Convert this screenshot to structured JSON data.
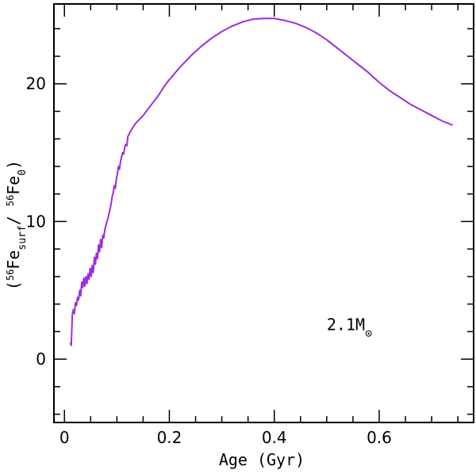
{
  "chart_data": {
    "type": "line",
    "title": "",
    "xlabel": "Age (Gyr)",
    "ylabel": {
      "open": "(",
      "num_sup": "56",
      "num_base": "Fe",
      "num_sub": "surf",
      "slash": "/ ",
      "den_sup": "56",
      "den_base": "Fe",
      "den_sub": "0",
      "close": ")"
    },
    "xlim": [
      -0.02,
      0.78
    ],
    "ylim": [
      -4.6,
      25.8
    ],
    "xticks": [
      0,
      0.2,
      0.4,
      0.6
    ],
    "xtick_labels": [
      "0",
      "0.2",
      "0.4",
      "0.6"
    ],
    "yticks": [
      0,
      10,
      20
    ],
    "ytick_labels": [
      "0",
      "10",
      "20"
    ],
    "x_minor_step": 0.05,
    "y_minor_step": 2,
    "annotation": {
      "text": "2.1M",
      "symbol": "⊙",
      "x": 0.5,
      "y": 2.1
    },
    "series": [
      {
        "name": "2.1 Msun",
        "color": "#9a2ee0",
        "x": [
          0.011,
          0.013,
          0.015,
          0.017,
          0.019,
          0.021,
          0.023,
          0.025,
          0.027,
          0.029,
          0.031,
          0.033,
          0.035,
          0.037,
          0.039,
          0.041,
          0.043,
          0.045,
          0.047,
          0.049,
          0.051,
          0.053,
          0.055,
          0.057,
          0.059,
          0.061,
          0.063,
          0.065,
          0.067,
          0.069,
          0.071,
          0.073,
          0.075,
          0.077,
          0.079,
          0.081,
          0.083,
          0.085,
          0.087,
          0.089,
          0.091,
          0.093,
          0.095,
          0.097,
          0.099,
          0.101,
          0.103,
          0.105,
          0.107,
          0.109,
          0.111,
          0.113,
          0.115,
          0.117,
          0.119,
          0.121,
          0.123,
          0.125,
          0.127,
          0.13,
          0.135,
          0.14,
          0.145,
          0.15,
          0.16,
          0.17,
          0.18,
          0.19,
          0.2,
          0.22,
          0.24,
          0.26,
          0.28,
          0.3,
          0.32,
          0.34,
          0.36,
          0.38,
          0.4,
          0.42,
          0.44,
          0.46,
          0.48,
          0.5,
          0.52,
          0.54,
          0.56,
          0.58,
          0.6,
          0.62,
          0.64,
          0.66,
          0.68,
          0.7,
          0.72,
          0.74
        ],
        "y": [
          1.2,
          1.0,
          3.2,
          3.6,
          3.3,
          4.1,
          3.9,
          4.5,
          4.3,
          5.0,
          4.6,
          5.6,
          5.2,
          5.9,
          5.3,
          6.0,
          5.5,
          6.2,
          5.8,
          6.6,
          6.0,
          6.8,
          6.3,
          7.4,
          6.9,
          7.7,
          7.3,
          8.3,
          7.8,
          8.7,
          8.1,
          9.0,
          8.8,
          9.4,
          9.7,
          10.0,
          10.2,
          10.6,
          10.9,
          11.3,
          11.8,
          12.1,
          12.6,
          12.4,
          13.1,
          13.5,
          14.0,
          13.8,
          14.4,
          14.7,
          15.0,
          14.9,
          15.4,
          15.6,
          15.5,
          16.2,
          16.3,
          16.5,
          16.6,
          16.8,
          17.1,
          17.3,
          17.5,
          17.7,
          18.2,
          18.7,
          19.2,
          19.8,
          20.3,
          21.2,
          22.0,
          22.7,
          23.3,
          23.8,
          24.2,
          24.5,
          24.7,
          24.75,
          24.75,
          24.6,
          24.4,
          24.1,
          23.7,
          23.2,
          22.6,
          22.0,
          21.4,
          20.8,
          20.1,
          19.5,
          19.0,
          18.5,
          18.1,
          17.7,
          17.3,
          17.0
        ]
      }
    ]
  }
}
